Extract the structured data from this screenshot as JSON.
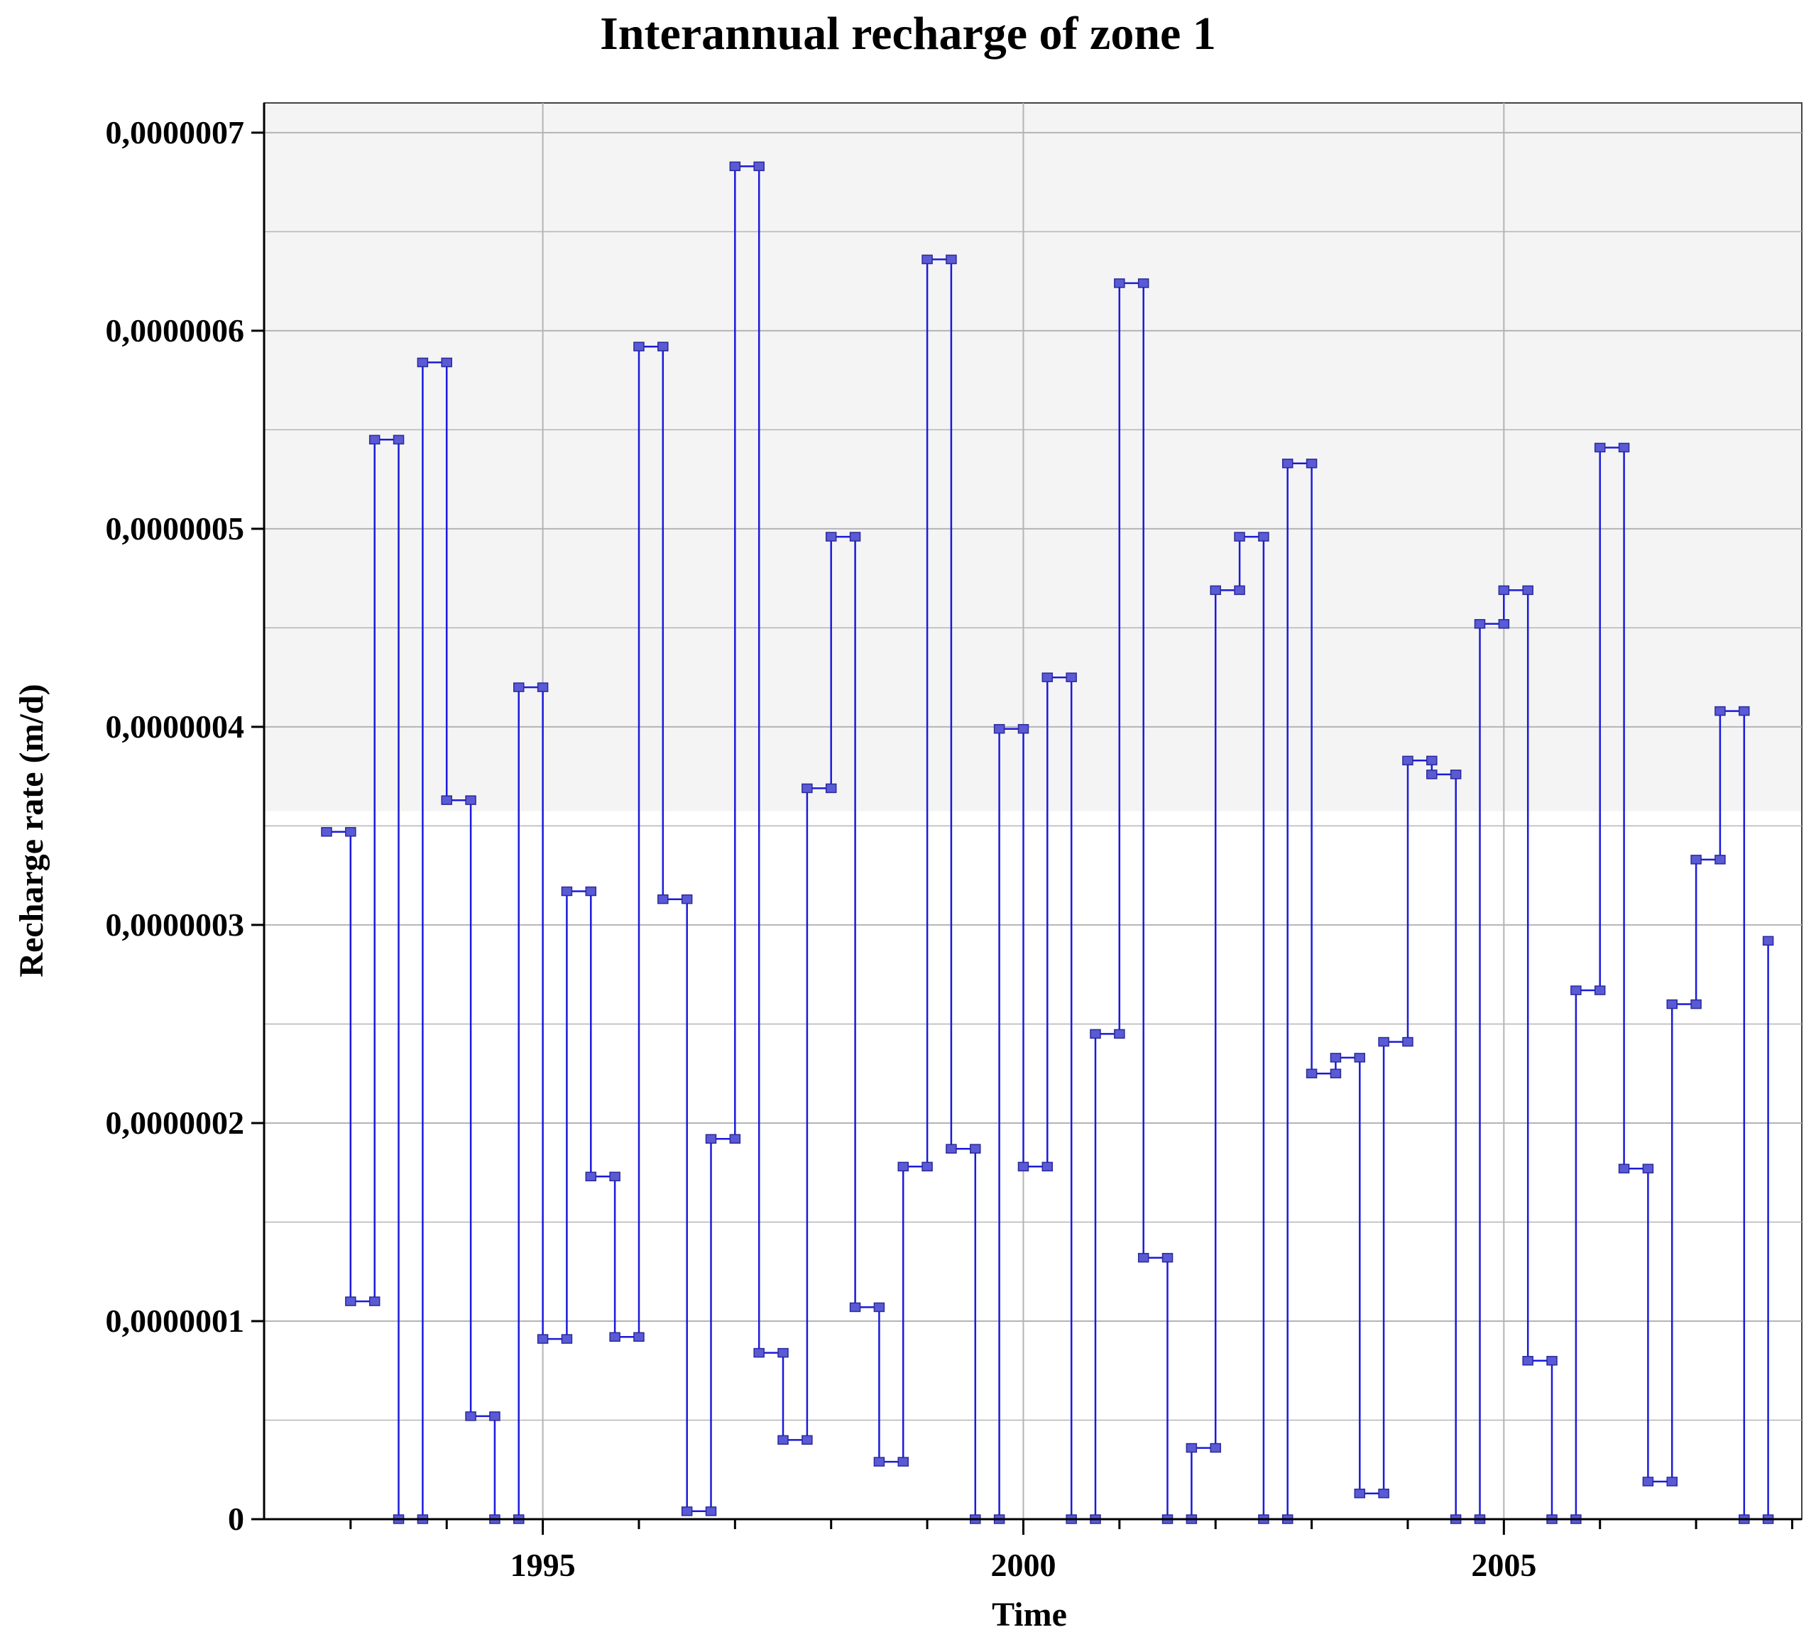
{
  "chart_data": {
    "type": "line",
    "step": true,
    "title": "Interannual recharge of zone 1",
    "xlabel": "Time",
    "ylabel": "Recharge rate (m/d)",
    "xlim": [
      1992.1,
      2008.1
    ],
    "ylim": [
      0,
      7.15e-07
    ],
    "xticks": [
      1995,
      2000,
      2005
    ],
    "xtick_labels": [
      "1995",
      "2000",
      "2005"
    ],
    "yticks": [
      0,
      1e-07,
      2e-07,
      3e-07,
      4e-07,
      5e-07,
      6e-07,
      7e-07
    ],
    "ytick_labels": [
      "0",
      "0,0000001",
      "0,0000002",
      "0,0000003",
      "0,0000004",
      "0,0000005",
      "0,0000006",
      "0,0000007"
    ],
    "grid": true,
    "legend": "none",
    "colors": {
      "line": "#1a1adc",
      "marker_fill": "#5a5ad6",
      "plot_top_band": "#f4f4f4",
      "grid": "#b4b4b4"
    },
    "series": [
      {
        "x": [
          1992.75,
          1993.0,
          1993.0,
          1993.25,
          1993.25,
          1993.5,
          1993.5,
          1993.75,
          1993.75,
          1994.0,
          1994.0,
          1994.25,
          1994.25,
          1994.5,
          1994.5,
          1994.75,
          1994.75,
          1995.0,
          1995.0,
          1995.25,
          1995.25,
          1995.5,
          1995.5,
          1995.75,
          1995.75,
          1996.0,
          1996.0,
          1996.25,
          1996.25,
          1996.5,
          1996.5,
          1996.75,
          1996.75,
          1997.0,
          1997.0,
          1997.25,
          1997.25,
          1997.5,
          1997.5,
          1997.75,
          1997.75,
          1998.0,
          1998.0,
          1998.25,
          1998.25,
          1998.5,
          1998.5,
          1998.75,
          1998.75,
          1999.0,
          1999.0,
          1999.25,
          1999.25,
          1999.5,
          1999.5,
          1999.75,
          1999.75,
          2000.0,
          2000.0,
          2000.25,
          2000.25,
          2000.5,
          2000.5,
          2000.75,
          2000.75,
          2001.0,
          2001.0,
          2001.25,
          2001.25,
          2001.5,
          2001.5,
          2001.75,
          2001.75,
          2002.0,
          2002.0,
          2002.25,
          2002.25,
          2002.5,
          2002.5,
          2002.75,
          2002.75,
          2003.0,
          2003.0,
          2003.25,
          2003.25,
          2003.5,
          2003.5,
          2003.75,
          2003.75,
          2004.0,
          2004.0,
          2004.25,
          2004.25,
          2004.5,
          2004.5,
          2004.75,
          2004.75,
          2005.0,
          2005.0,
          2005.25,
          2005.25,
          2005.5,
          2005.5,
          2005.75,
          2005.75,
          2006.0,
          2006.0,
          2006.25,
          2006.25,
          2006.5,
          2006.5,
          2006.75,
          2006.75,
          2007.0,
          2007.0,
          2007.25,
          2007.25,
          2007.5,
          2007.5,
          2007.75,
          2007.75
        ],
        "y": [
          3.47e-07,
          3.47e-07,
          1.1e-07,
          1.1e-07,
          5.45e-07,
          5.45e-07,
          0,
          0,
          5.84e-07,
          5.84e-07,
          3.63e-07,
          3.63e-07,
          5.2e-08,
          5.2e-08,
          0,
          0,
          4.2e-07,
          4.2e-07,
          9.1e-08,
          9.1e-08,
          3.17e-07,
          3.17e-07,
          1.73e-07,
          1.73e-07,
          9.2e-08,
          9.2e-08,
          5.92e-07,
          5.92e-07,
          3.13e-07,
          3.13e-07,
          4e-09,
          4e-09,
          1.92e-07,
          1.92e-07,
          6.83e-07,
          6.83e-07,
          8.4e-08,
          8.4e-08,
          4e-08,
          4e-08,
          3.69e-07,
          3.69e-07,
          4.96e-07,
          4.96e-07,
          1.07e-07,
          1.07e-07,
          2.9e-08,
          2.9e-08,
          1.78e-07,
          1.78e-07,
          6.36e-07,
          6.36e-07,
          1.87e-07,
          1.87e-07,
          0,
          0,
          3.99e-07,
          3.99e-07,
          1.78e-07,
          1.78e-07,
          4.25e-07,
          4.25e-07,
          0,
          0,
          2.45e-07,
          2.45e-07,
          6.24e-07,
          6.24e-07,
          1.32e-07,
          1.32e-07,
          0,
          0,
          3.6e-08,
          3.6e-08,
          4.69e-07,
          4.69e-07,
          4.96e-07,
          4.96e-07,
          0,
          0,
          5.33e-07,
          5.33e-07,
          2.25e-07,
          2.25e-07,
          2.33e-07,
          2.33e-07,
          1.3e-08,
          1.3e-08,
          2.41e-07,
          2.41e-07,
          3.83e-07,
          3.83e-07,
          3.76e-07,
          3.76e-07,
          0,
          0,
          4.52e-07,
          4.52e-07,
          4.69e-07,
          4.69e-07,
          8e-08,
          8e-08,
          0,
          0,
          2.67e-07,
          2.67e-07,
          5.41e-07,
          5.41e-07,
          1.77e-07,
          1.77e-07,
          1.9e-08,
          1.9e-08,
          2.6e-07,
          2.6e-07,
          3.33e-07,
          3.33e-07,
          4.08e-07,
          4.08e-07,
          0,
          0,
          2.92e-07
        ]
      }
    ]
  }
}
